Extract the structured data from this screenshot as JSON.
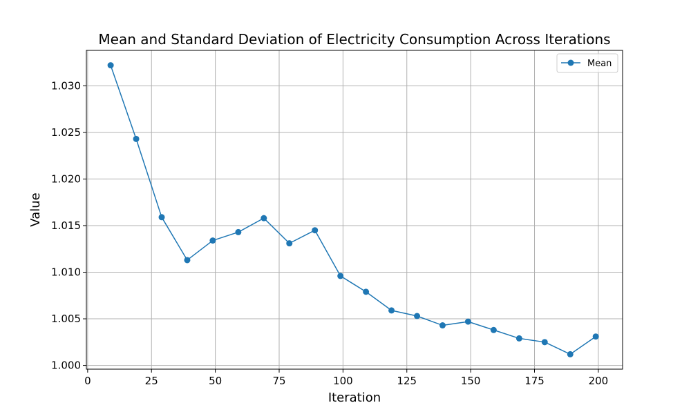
{
  "chart_data": {
    "type": "line",
    "title": "Mean and Standard Deviation of Electricity Consumption Across Iterations",
    "xlabel": "Iteration",
    "ylabel": "Value",
    "xlim": [
      -0.5,
      209.5
    ],
    "ylim": [
      0.9996,
      1.0338
    ],
    "xticks": [
      0,
      25,
      50,
      75,
      100,
      125,
      150,
      175,
      200
    ],
    "yticks": [
      1.0,
      1.005,
      1.01,
      1.015,
      1.02,
      1.025,
      1.03
    ],
    "ytick_labels": [
      "1.000",
      "1.005",
      "1.010",
      "1.015",
      "1.020",
      "1.025",
      "1.030"
    ],
    "grid": true,
    "legend_position": "top-right",
    "series": [
      {
        "name": "Mean",
        "color": "#1f77b4",
        "marker": "circle",
        "x": [
          9,
          19,
          29,
          39,
          49,
          59,
          69,
          79,
          89,
          99,
          109,
          119,
          129,
          139,
          149,
          159,
          169,
          179,
          189,
          199
        ],
        "y": [
          1.0322,
          1.0243,
          1.0159,
          1.0113,
          1.0134,
          1.0143,
          1.0158,
          1.0131,
          1.0145,
          1.0096,
          1.0079,
          1.0059,
          1.0053,
          1.0043,
          1.0047,
          1.0038,
          1.0029,
          1.0025,
          1.0012,
          1.0031
        ]
      }
    ]
  }
}
